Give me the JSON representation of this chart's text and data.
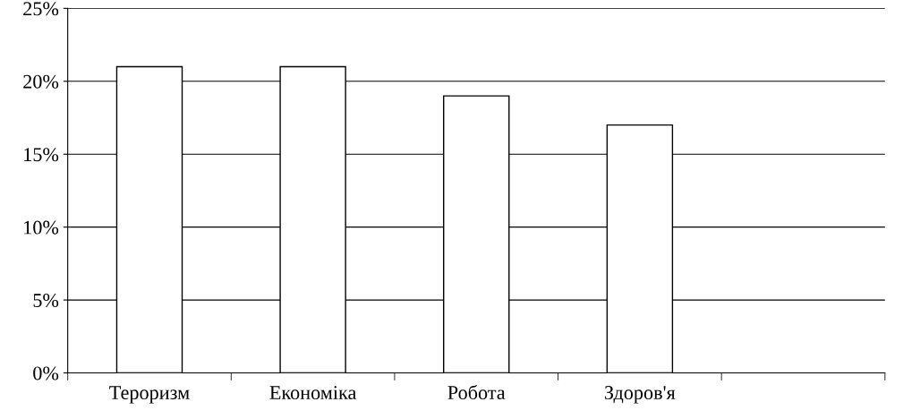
{
  "chart_data": {
    "type": "bar",
    "categories": [
      "Тероризм",
      "Економіка",
      "Робота",
      "Здоров'я",
      null
    ],
    "values": [
      21,
      21,
      19,
      17,
      null
    ],
    "color": "#ffffff",
    "ylim": [
      0,
      25
    ],
    "yticks": [
      {
        "value": 0,
        "label": "0%"
      },
      {
        "value": 5,
        "label": "5%"
      },
      {
        "value": 10,
        "label": "10%"
      },
      {
        "value": 15,
        "label": "15%"
      },
      {
        "value": 20,
        "label": "20%"
      },
      {
        "value": 25,
        "label": "25%"
      }
    ],
    "grid": "y",
    "legend": false
  }
}
